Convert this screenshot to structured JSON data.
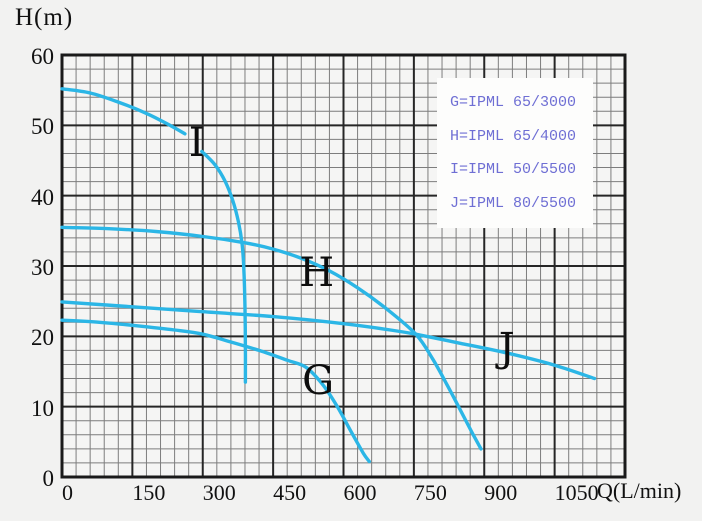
{
  "chart_data": {
    "type": "line",
    "title": "",
    "xlabel": "Q(L/min)",
    "ylabel": "H(m)",
    "xlim": [
      0,
      1200
    ],
    "ylim": [
      0,
      60
    ],
    "x_major_step": 150,
    "x_minor_step": 30,
    "y_major_step": 10,
    "y_minor_step": 2,
    "x_ticks": [
      0,
      150,
      300,
      450,
      600,
      750,
      900,
      1050
    ],
    "y_ticks": [
      0,
      10,
      20,
      30,
      40,
      50,
      60
    ],
    "grid": "major+minor",
    "curve_color": "#2bb6e6",
    "series": [
      {
        "name": "G",
        "model": "IPML 65/3000",
        "label_pos": {
          "q": 546,
          "h": 13.6
        },
        "segments": [
          [
            [
              0,
              22.3
            ],
            [
              80,
              22.0
            ],
            [
              160,
              21.5
            ],
            [
              240,
              20.9
            ],
            [
              300,
              20.3
            ],
            [
              360,
              19.2
            ],
            [
              420,
              18.0
            ],
            [
              480,
              16.6
            ],
            [
              520,
              15.6
            ],
            [
              555,
              13.2
            ],
            [
              585,
              10.2
            ],
            [
              615,
              6.6
            ],
            [
              642,
              3.4
            ],
            [
              655,
              2.2
            ]
          ]
        ]
      },
      {
        "name": "H",
        "model": "IPML 65/4000",
        "label_pos": {
          "q": 543,
          "h": 29.0
        },
        "segments": [
          [
            [
              0,
              35.5
            ],
            [
              100,
              35.3
            ],
            [
              200,
              34.9
            ],
            [
              300,
              34.2
            ],
            [
              390,
              33.3
            ],
            [
              450,
              32.4
            ],
            [
              510,
              31.1
            ],
            [
              570,
              29.3
            ],
            [
              630,
              26.9
            ],
            [
              690,
              24.0
            ],
            [
              754,
              20.3
            ],
            [
              790,
              16.8
            ],
            [
              820,
              13.2
            ],
            [
              850,
              9.4
            ],
            [
              875,
              6.2
            ],
            [
              893,
              4.0
            ]
          ]
        ]
      },
      {
        "name": "I",
        "model": "IPML 50/5500",
        "label_pos": {
          "q": 287,
          "h": 47.5
        },
        "segments": [
          [
            [
              0,
              55.2
            ],
            [
              60,
              54.6
            ],
            [
              120,
              53.3
            ],
            [
              180,
              51.7
            ],
            [
              230,
              50.0
            ],
            [
              262,
              48.8
            ]
          ],
          [
            [
              298,
              46.3
            ],
            [
              326,
              44.4
            ],
            [
              348,
              42.0
            ],
            [
              364,
              39.3
            ],
            [
              376,
              36.3
            ],
            [
              384,
              33.0
            ],
            [
              388,
              29.0
            ],
            [
              390,
              24.0
            ],
            [
              391,
              18.0
            ],
            [
              391,
              13.5
            ]
          ]
        ]
      },
      {
        "name": "J",
        "model": "IPML 80/5500",
        "label_pos": {
          "q": 948,
          "h": 18.4
        },
        "segments": [
          [
            [
              0,
              24.9
            ],
            [
              150,
              24.2
            ],
            [
              300,
              23.5
            ],
            [
              450,
              22.8
            ],
            [
              600,
              21.8
            ],
            [
              700,
              20.9
            ],
            [
              754,
              20.3
            ],
            [
              850,
              19.0
            ],
            [
              950,
              17.6
            ],
            [
              1050,
              15.9
            ],
            [
              1135,
              14.0
            ]
          ]
        ]
      }
    ],
    "legend": {
      "entries": [
        "G=IPML 65/3000",
        "H=IPML 65/4000",
        "I=IPML 50/5500",
        "J=IPML 80/5500"
      ],
      "text_color": "#6f6fd4"
    }
  },
  "colors": {
    "background": "#f2f2f1",
    "plot_background": "#f5f5f4",
    "grid_minor": "#7d7d7d",
    "grid_major": "#262626",
    "curve": "#2bb6e6",
    "legend_text": "#6f6fd4"
  }
}
